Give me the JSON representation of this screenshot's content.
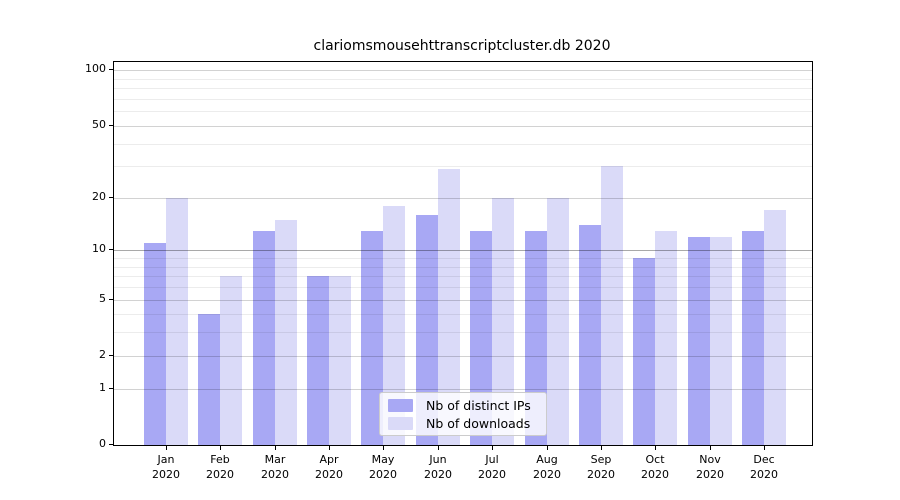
{
  "figure": {
    "background": "#ffffff",
    "axis_color": "#000000"
  },
  "chart_data": {
    "type": "bar",
    "title": "clariomsmousehttranscriptcluster.db 2020",
    "categories": [
      {
        "month": "Jan",
        "year": "2020"
      },
      {
        "month": "Feb",
        "year": "2020"
      },
      {
        "month": "Mar",
        "year": "2020"
      },
      {
        "month": "Apr",
        "year": "2020"
      },
      {
        "month": "May",
        "year": "2020"
      },
      {
        "month": "Jun",
        "year": "2020"
      },
      {
        "month": "Jul",
        "year": "2020"
      },
      {
        "month": "Aug",
        "year": "2020"
      },
      {
        "month": "Sep",
        "year": "2020"
      },
      {
        "month": "Oct",
        "year": "2020"
      },
      {
        "month": "Nov",
        "year": "2020"
      },
      {
        "month": "Dec",
        "year": "2020"
      }
    ],
    "series": [
      {
        "name": "Nb of distinct IPs",
        "color": "#a8a8f4",
        "values": [
          11,
          4,
          13,
          7,
          13,
          16,
          13,
          13,
          14,
          9,
          12,
          13
        ]
      },
      {
        "name": "Nb of downloads",
        "color": "#dadaf8",
        "values": [
          20,
          7,
          15,
          7,
          18,
          29,
          20,
          20,
          30,
          13,
          12,
          17
        ]
      }
    ],
    "xlabel": "",
    "ylabel": "",
    "yscale": "log1p",
    "ylim": [
      0,
      111
    ],
    "yticks": [
      0,
      1,
      2,
      5,
      10,
      20,
      50,
      100
    ],
    "minor_gridlines": [
      3,
      4,
      6,
      7,
      8,
      9,
      30,
      40,
      60,
      70,
      80,
      90
    ],
    "emphasized_gridline": 10,
    "grid": true,
    "legend_position": "lower center",
    "gridline_color_major": "#d2d2d2",
    "gridline_color_minor": "#ececec",
    "gridline_color_emphasis": "#a9a9a9"
  }
}
